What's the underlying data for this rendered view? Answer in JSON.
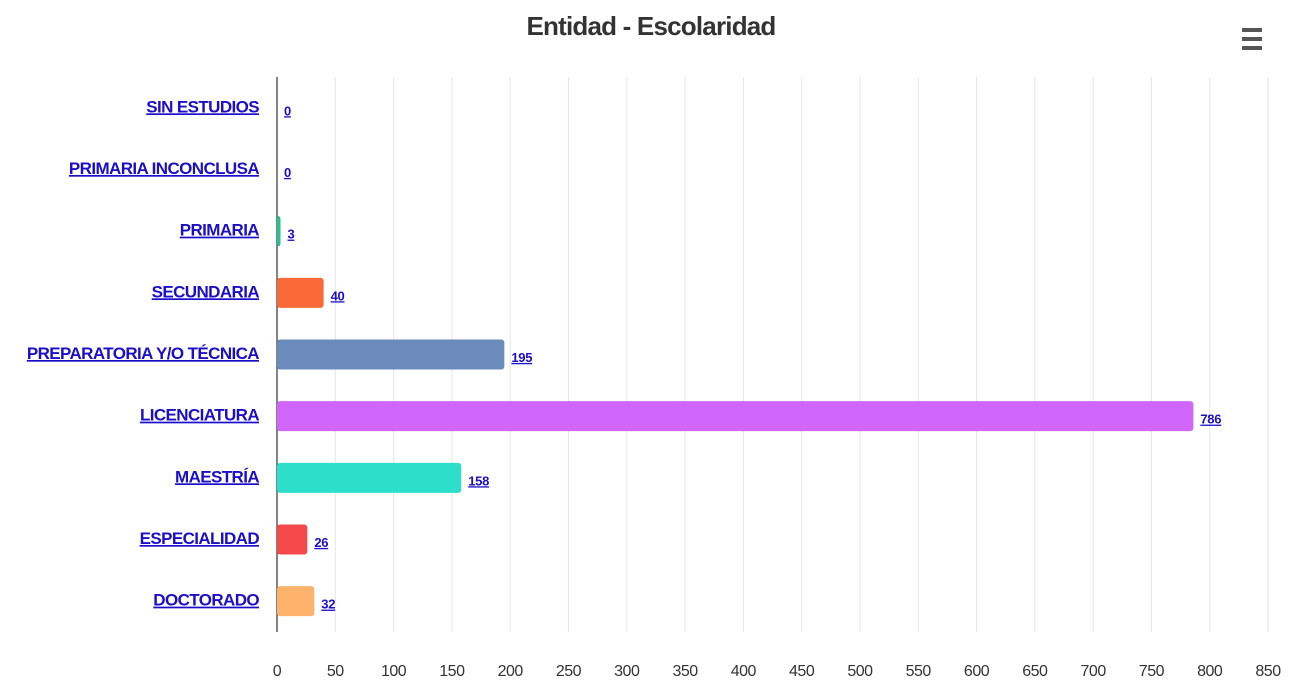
{
  "chart_data": {
    "type": "bar",
    "orientation": "horizontal",
    "title": "Entidad - Escolaridad",
    "categories": [
      "SIN ESTUDIOS",
      "PRIMARIA INCONCLUSA",
      "PRIMARIA",
      "SECUNDARIA",
      "PREPARATORIA Y/O TÉCNICA",
      "LICENCIATURA",
      "MAESTRÍA",
      "ESPECIALIDAD",
      "DOCTORADO"
    ],
    "values": [
      0,
      0,
      3,
      40,
      195,
      786,
      158,
      26,
      32
    ],
    "colors": [
      "#7cb5ec",
      "#434348",
      "#22c38e",
      "#f96a38",
      "#6b8bbd",
      "#d066fb",
      "#2ddfcb",
      "#f44a4a",
      "#fdb36c"
    ],
    "xlim": [
      0,
      850
    ],
    "xticks": [
      0,
      50,
      100,
      150,
      200,
      250,
      300,
      350,
      400,
      450,
      500,
      550,
      600,
      650,
      700,
      750,
      800,
      850
    ],
    "grid": true
  }
}
